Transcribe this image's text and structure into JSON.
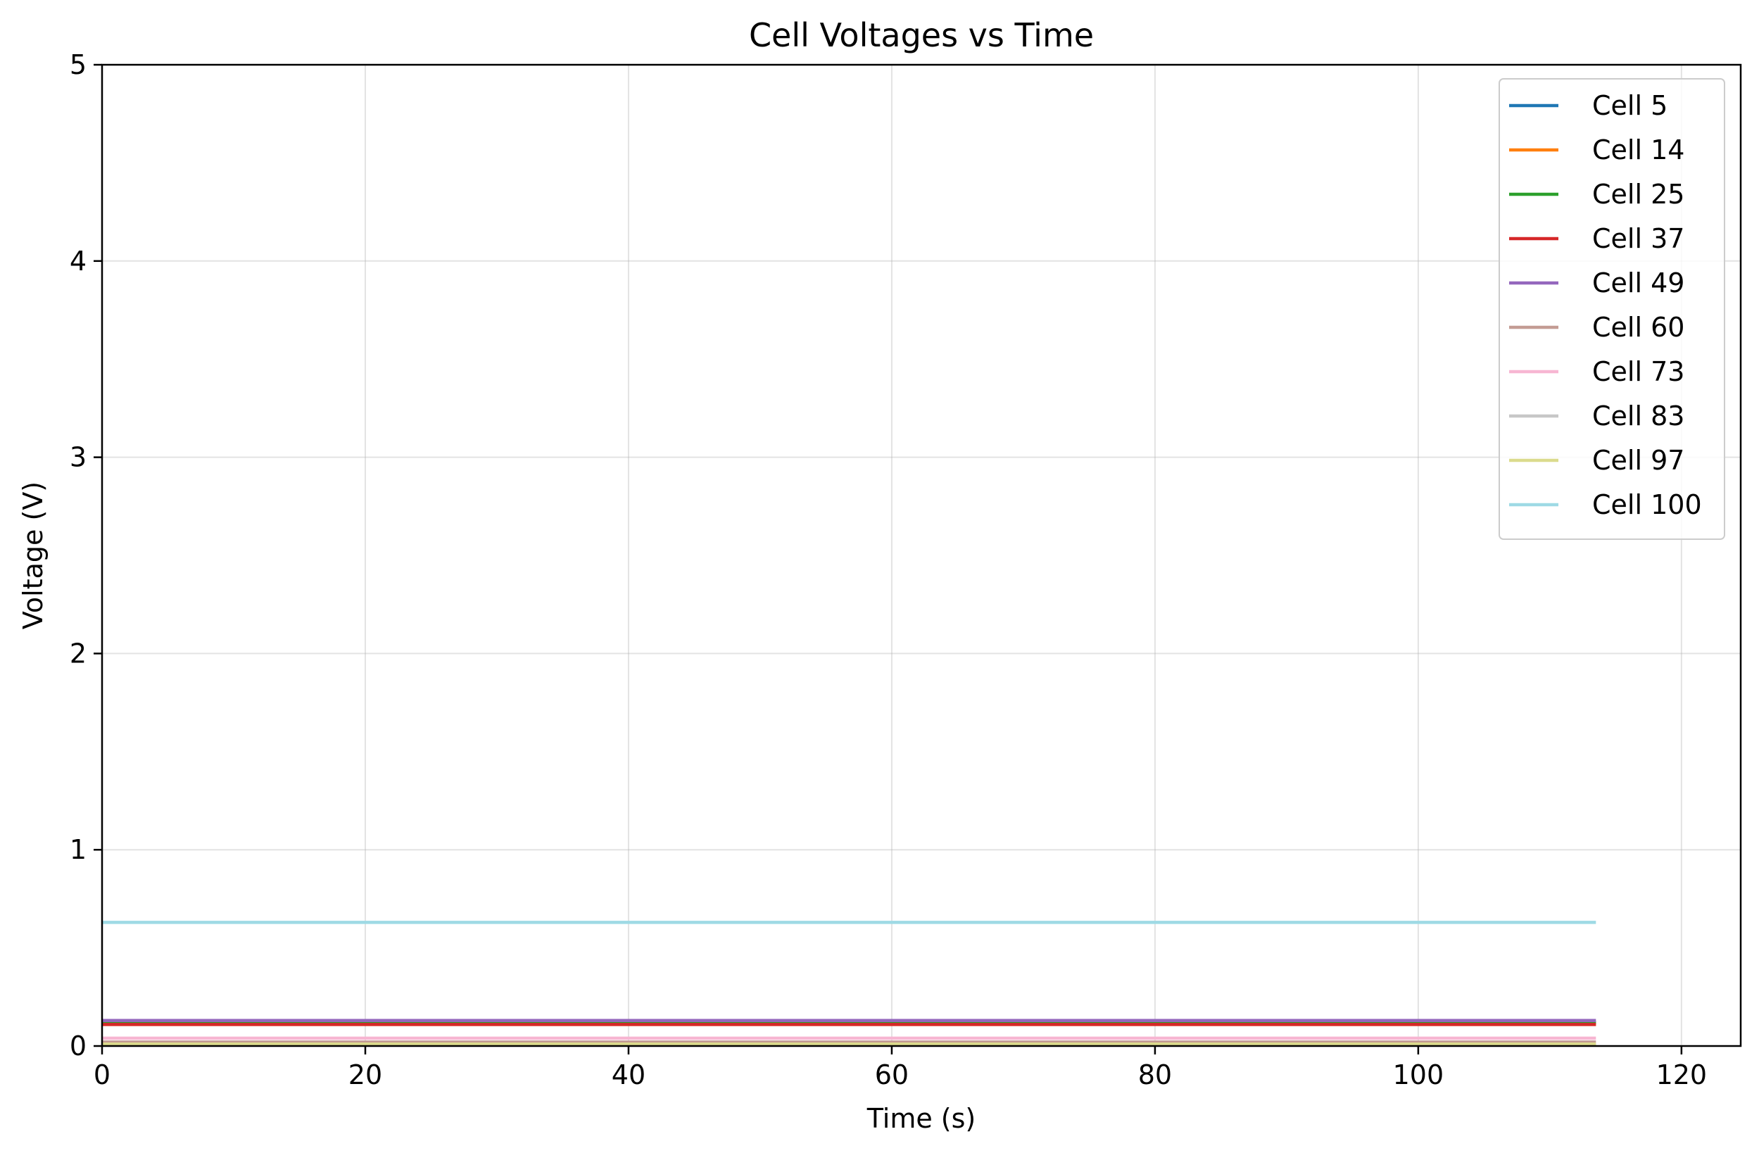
{
  "chart_data": {
    "type": "line",
    "title": "Cell Voltages vs Time",
    "xlabel": "Time (s)",
    "ylabel": "Voltage (V)",
    "xlim": [
      0,
      124.5
    ],
    "ylim": [
      0,
      5
    ],
    "xticks": [
      0,
      20,
      40,
      60,
      80,
      100,
      120
    ],
    "yticks": [
      0,
      1,
      2,
      3,
      4,
      5
    ],
    "grid": true,
    "legend_position": "top-right",
    "x": [
      0,
      113.5
    ],
    "series": [
      {
        "name": "Cell 5",
        "color": "#1f77b4",
        "values": [
          0.12,
          0.12
        ]
      },
      {
        "name": "Cell 14",
        "color": "#ff7f0e",
        "values": [
          0.11,
          0.11
        ]
      },
      {
        "name": "Cell 25",
        "color": "#2ca02c",
        "values": [
          0.12,
          0.12
        ]
      },
      {
        "name": "Cell 37",
        "color": "#d62728",
        "values": [
          0.11,
          0.11
        ]
      },
      {
        "name": "Cell 49",
        "color": "#9467bd",
        "values": [
          0.13,
          0.13
        ]
      },
      {
        "name": "Cell 60",
        "color": "#c49c94",
        "values": [
          0.02,
          0.02
        ]
      },
      {
        "name": "Cell 73",
        "color": "#f7b6d2",
        "values": [
          0.04,
          0.04
        ]
      },
      {
        "name": "Cell 83",
        "color": "#c7c7c7",
        "values": [
          0.01,
          0.01
        ]
      },
      {
        "name": "Cell 97",
        "color": "#dbdb8d",
        "values": [
          0.01,
          0.01
        ]
      },
      {
        "name": "Cell 100",
        "color": "#9edae5",
        "values": [
          0.63,
          0.63
        ]
      }
    ]
  }
}
